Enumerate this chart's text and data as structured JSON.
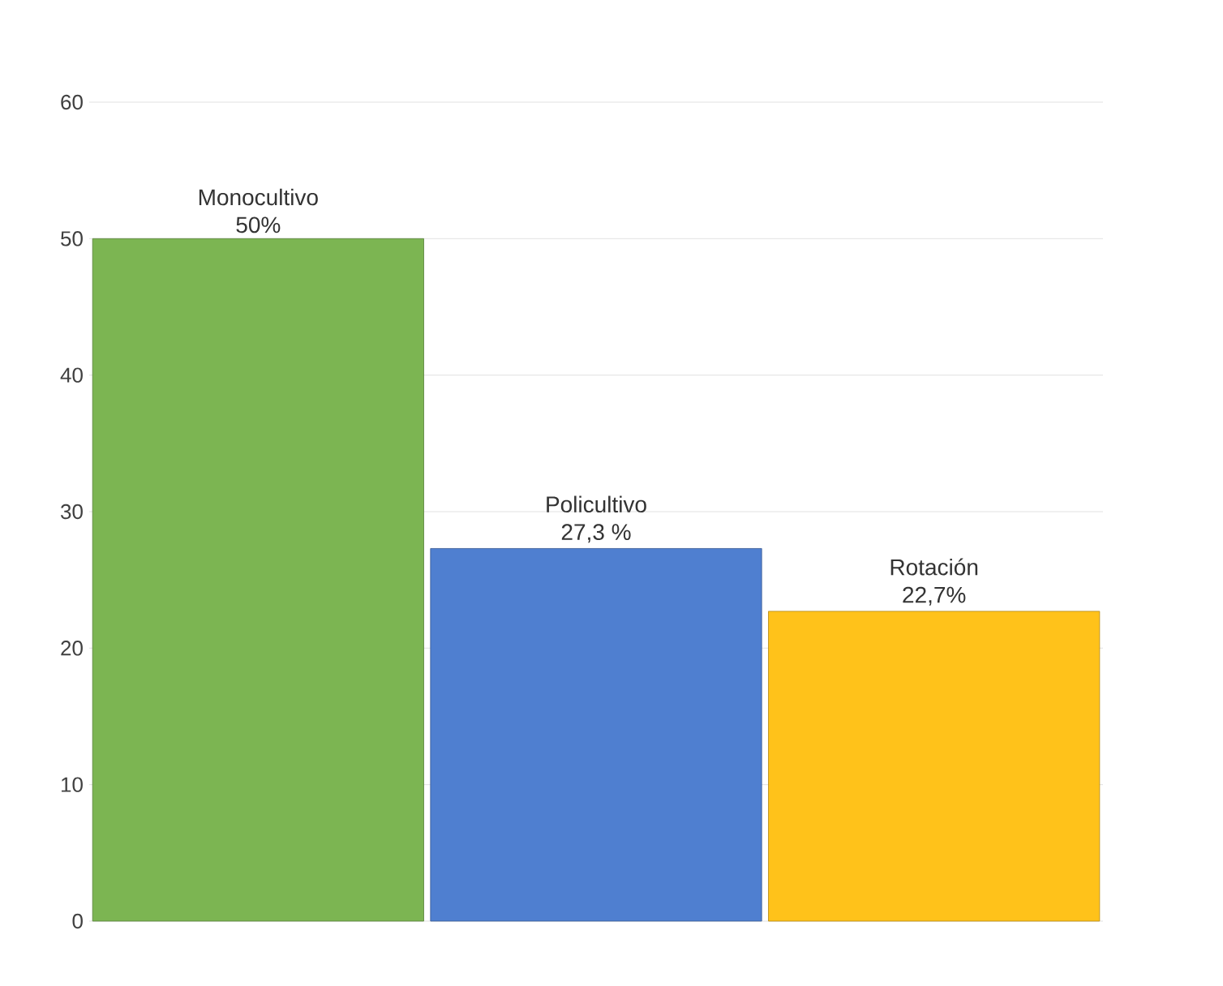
{
  "chart_data": {
    "type": "bar",
    "categories": [
      "Monocultivo",
      "Policultivo",
      "Rotación"
    ],
    "values": [
      50,
      27.3,
      22.7
    ],
    "value_labels": [
      "50%",
      "27,3 %",
      "22,7%"
    ],
    "colors": [
      "#7cb552",
      "#4f7fd0",
      "#ffc21a"
    ],
    "ylim": [
      0,
      60
    ],
    "yticks": [
      0,
      10,
      20,
      30,
      40,
      50,
      60
    ],
    "grid": "y"
  }
}
